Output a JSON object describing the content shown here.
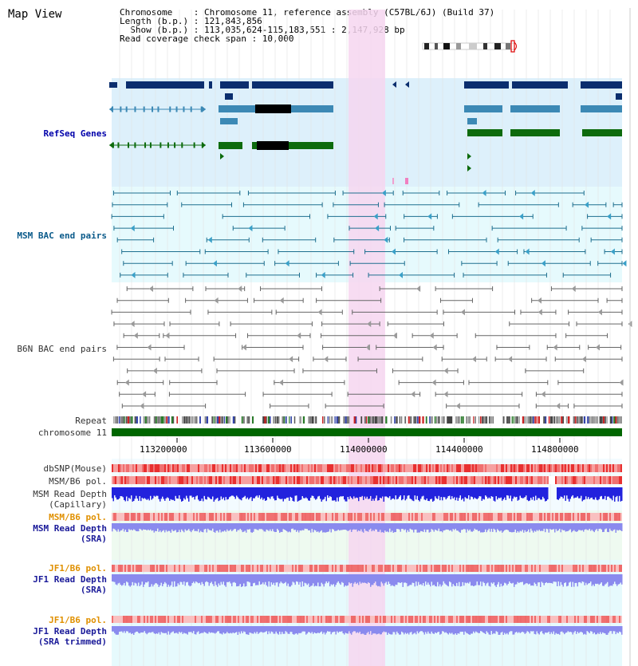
{
  "view_title": "Map View",
  "info": {
    "chromosome": "Chromosome    : Chromosome 11, reference assembly (C57BL/6J) (Build 37)",
    "length": "Length (b.p.) : 121,843,856",
    "show": "  Show (b.p.) : 113,035,624-115,183,551 : 2,147,928 bp",
    "coverage": "Read coverage check span : 10,000"
  },
  "tracks": {
    "refseq": "RefSeq Genes",
    "msm_bac": "MSM BAC end pairs",
    "b6n_bac": "B6N BAC end pairs",
    "repeat": "Repeat",
    "chromosome": "chromosome 11",
    "dbsnp": "dbSNP(Mouse)",
    "msm_pol1": "MSM/B6 pol.",
    "msm_depth_cap_1": "MSM Read Depth",
    "msm_depth_cap_2": "(Capillary)",
    "msm_pol2": "MSM/B6 pol.",
    "msm_depth_sra_1": "MSM Read Depth",
    "msm_depth_sra_2": "(SRA)",
    "jf1_pol1": "JF1/B6 pol.",
    "jf1_depth_sra_1": "JF1 Read Depth",
    "jf1_depth_sra_2": "(SRA)",
    "jf1_pol2": "JF1/B6 pol.",
    "jf1_depth_trim_1": "JF1 Read Depth",
    "jf1_depth_trim_2": "(SRA trimmed)"
  },
  "axis": {
    "ticks": [
      "113200000",
      "113600000",
      "114000000",
      "114400000",
      "114800000"
    ]
  },
  "colors": {
    "refseq_bg": "#ddf0fb",
    "msm_bg": "#e6fafd",
    "highlight": "#f6d6f0",
    "gene_dark": "#0b2e6e",
    "gene_mid": "#3c89b5",
    "gene_green": "#0d6b0d",
    "bac_line": "#1e6f8f",
    "b6n_line": "#666666",
    "chrom_green": "#006600",
    "snp_red": "#ee4444",
    "depth_blue": "#2222dd",
    "depth_light": "#8a8aee"
  }
}
